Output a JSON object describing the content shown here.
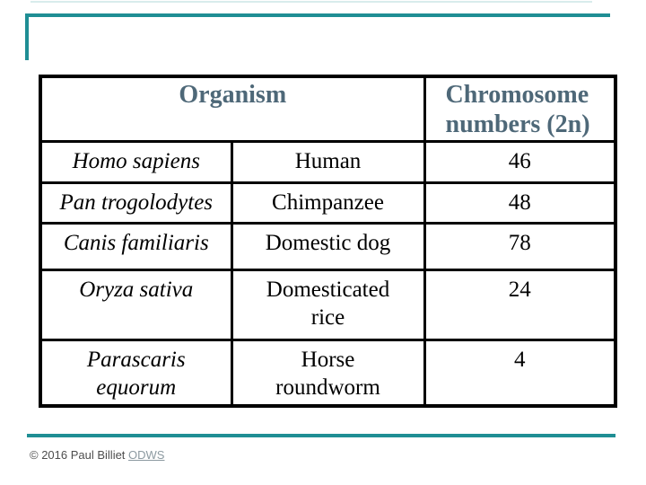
{
  "slide": {
    "accent_color": "#1f8e94",
    "header_text_color": "#4e6878",
    "border_color": "#000000",
    "link_color": "#8c9aa1"
  },
  "table": {
    "header": {
      "organism": "Organism",
      "chromosome": "Chromosome\nnumbers (2n)"
    },
    "rows": [
      {
        "scientific": "Homo sapiens",
        "common": "Human",
        "number": "46"
      },
      {
        "scientific": "Pan trogolodytes",
        "common": "Chimpanzee",
        "number": "48"
      },
      {
        "scientific": "Canis familiaris",
        "common": "Domestic dog",
        "number": "78"
      },
      {
        "scientific": "Oryza sativa",
        "common": "Domesticated\nrice",
        "number": "24"
      },
      {
        "scientific": "Parascaris\nequorum",
        "common": "Horse\nroundworm",
        "number": "4"
      }
    ]
  },
  "footer": {
    "copyright": "© 2016 Paul Billiet ",
    "link": "ODWS"
  }
}
